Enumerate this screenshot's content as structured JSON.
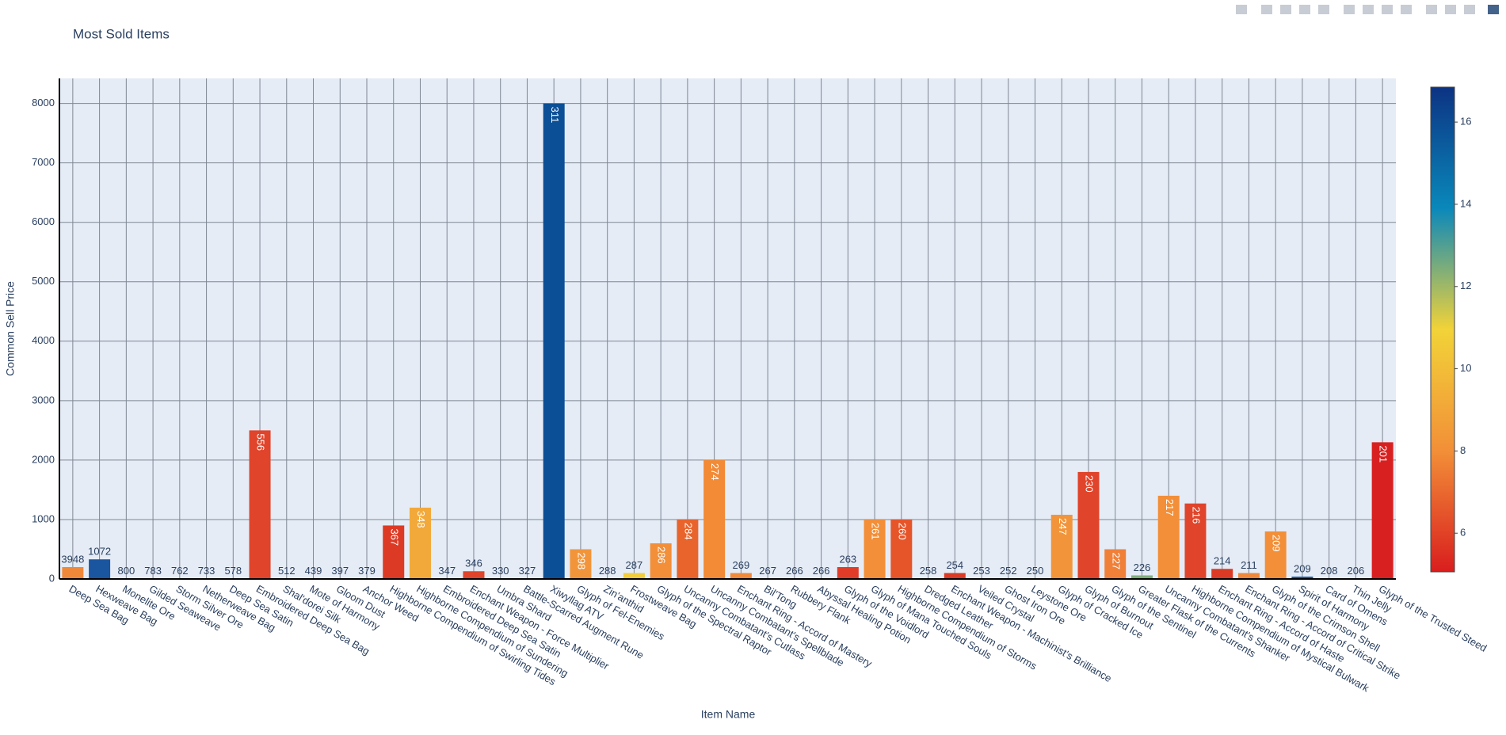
{
  "chart_data": {
    "type": "bar",
    "title": "Most Sold Items",
    "x_label": "Item Name",
    "y_label": "Common Sell Price",
    "categories": [
      "Deep Sea Bag",
      "Hexweave Bag",
      "Monelite Ore",
      "Gilded Seaweave",
      "Storm Silver Ore",
      "Netherweave Bag",
      "Deep Sea Satin",
      "Embroidered Deep Sea Bag",
      "Shal'dorei Silk",
      "Mote of Harmony",
      "Gloom Dust",
      "Anchor Weed",
      "Highborne Compendium of Swirling Tides",
      "Highborne Compendium of Sundering",
      "Embroidered Deep Sea Satin",
      "Enchant Weapon - Force Multiplier",
      "Umbra Shard",
      "Battle-Scarred Augment Rune",
      "Xiwyllag ATV",
      "Glyph of Fel-Enemies",
      "Zin'anthid",
      "Frostweave Bag",
      "Glyph of the Spectral Raptor",
      "Uncanny Combatant's Cutlass",
      "Uncanny Combatant's Spellblade",
      "Enchant Ring - Accord of Mastery",
      "Bil'Tong",
      "Rubbery Flank",
      "Abyssal Healing Potion",
      "Glyph of the Voidlord",
      "Glyph of Mana Touched Souls",
      "Highborne Compendium of Storms",
      "Dredged Leather",
      "Enchant Weapon - Machinist's Brilliance",
      "Veiled Crystal",
      "Ghost Iron Ore",
      "Leystone Ore",
      "Glyph of Cracked Ice",
      "Glyph of Burnout",
      "Glyph of the Sentinel",
      "Greater Flask of the Currents",
      "Uncanny Combatant's Shanker",
      "Highborne Compendium of Mystical Bulwark",
      "Enchant Ring - Accord of Haste",
      "Enchant Ring - Accord of Critical Strike",
      "Glyph of the Crimson Shell",
      "Spirit of Harmony",
      "Card of Omens",
      "Thin Jelly",
      "Glyph of the Trusted Steed"
    ],
    "values": [
      200,
      330,
      3,
      3,
      3,
      3,
      3,
      2500,
      3,
      3,
      3,
      3,
      900,
      1200,
      3,
      130,
      3,
      3,
      8000,
      500,
      3,
      100,
      600,
      1000,
      2000,
      100,
      3,
      3,
      3,
      200,
      1000,
      1000,
      3,
      100,
      3,
      3,
      3,
      1080,
      1800,
      500,
      60,
      1400,
      1270,
      170,
      100,
      800,
      40,
      3,
      3,
      2300
    ],
    "text": [
      3948,
      1072,
      800,
      783,
      762,
      733,
      578,
      556,
      512,
      439,
      397,
      379,
      367,
      348,
      347,
      346,
      330,
      327,
      311,
      298,
      288,
      287,
      286,
      284,
      274,
      269,
      267,
      266,
      266,
      263,
      261,
      260,
      258,
      254,
      253,
      252,
      250,
      247,
      230,
      227,
      226,
      217,
      216,
      214,
      211,
      209,
      209,
      208,
      206,
      201
    ],
    "colors": [
      "#f0883a",
      "#1a55a0",
      "#e8642c",
      "#e8642c",
      "#e8642c",
      "#e8642c",
      "#e8642c",
      "#e0442a",
      "#e8642c",
      "#e8642c",
      "#e8642c",
      "#e8642c",
      "#dc3a24",
      "#f2a93a",
      "#e8642c",
      "#e0442a",
      "#e8642c",
      "#e8642c",
      "#0b4f96",
      "#f2953a",
      "#e8642c",
      "#f2cc3a",
      "#f28f38",
      "#e8642c",
      "#f28a36",
      "#f08a3a",
      "#e8642c",
      "#e8642c",
      "#e8642c",
      "#e03c28",
      "#f28f38",
      "#e6552a",
      "#e8642c",
      "#dc3a24",
      "#e8642c",
      "#e8642c",
      "#e8642c",
      "#f2953a",
      "#e0442a",
      "#f08038",
      "#7fae7a",
      "#f28f38",
      "#e0442a",
      "#dc3a24",
      "#f0883a",
      "#f28f38",
      "#1c5aa2",
      "#e8642c",
      "#e8642c",
      "#d92020"
    ],
    "ylim": [
      0,
      8421
    ],
    "yticks": [
      0,
      1000,
      2000,
      3000,
      4000,
      5000,
      6000,
      7000,
      8000
    ],
    "grid": true,
    "colorbar": {
      "lim": [
        5.06,
        16.85
      ],
      "ticks": [
        6,
        8,
        10,
        12,
        14,
        16
      ],
      "colorscale": [
        "#d91e1e",
        "#f28f38",
        "#f2d338",
        "#0a88ba",
        "#0c3383"
      ]
    }
  }
}
